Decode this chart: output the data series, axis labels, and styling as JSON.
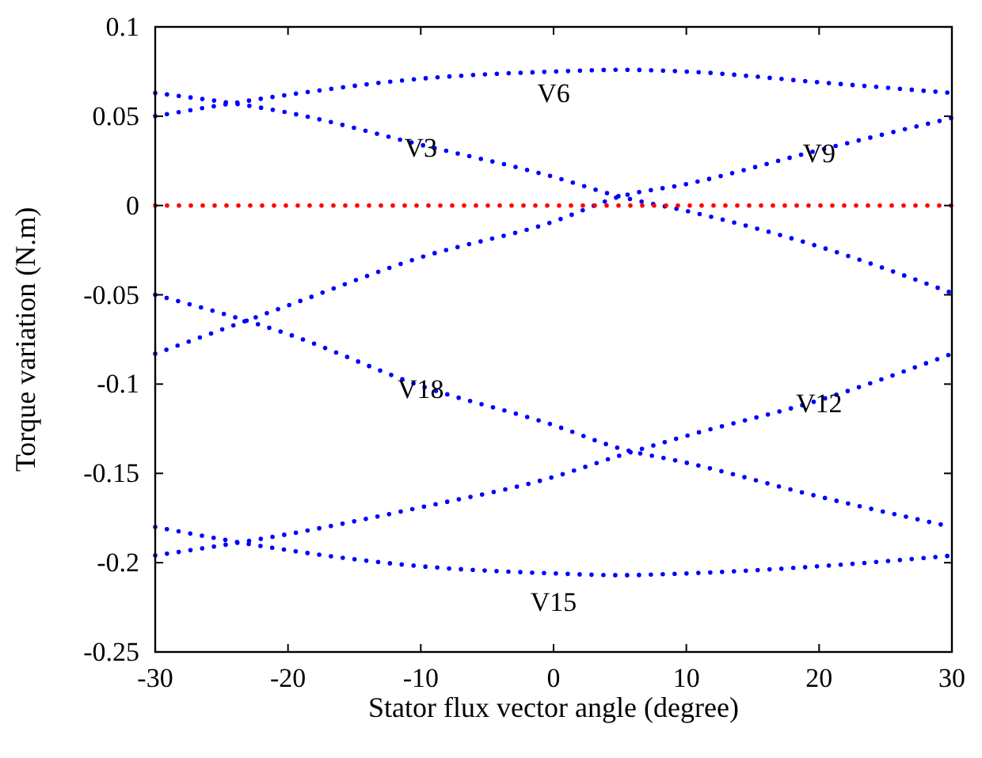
{
  "chart_data": {
    "type": "line",
    "xlabel": "Stator flux vector angle (degree)",
    "ylabel": "Torque variation (N.m)",
    "x": [
      -30,
      -20,
      -10,
      0,
      5,
      10,
      20,
      30
    ],
    "series": [
      {
        "name": "V6",
        "color": "#0000ff",
        "values": [
          0.05,
          0.062,
          0.071,
          0.075,
          0.076,
          0.075,
          0.069,
          0.063
        ]
      },
      {
        "name": "V3",
        "color": "#0000ff",
        "values": [
          0.063,
          0.052,
          0.034,
          0.016,
          0.005,
          -0.003,
          -0.023,
          -0.049
        ]
      },
      {
        "name": "V9",
        "color": "#0000ff",
        "values": [
          -0.083,
          -0.056,
          -0.029,
          -0.009,
          0.005,
          0.012,
          0.031,
          0.049
        ]
      },
      {
        "name": "V18",
        "color": "#0000ff",
        "values": [
          -0.05,
          -0.072,
          -0.101,
          -0.123,
          -0.136,
          -0.144,
          -0.163,
          -0.18
        ]
      },
      {
        "name": "V12",
        "color": "#0000ff",
        "values": [
          -0.196,
          -0.184,
          -0.169,
          -0.152,
          -0.14,
          -0.129,
          -0.109,
          -0.083
        ]
      },
      {
        "name": "V15",
        "color": "#0000ff",
        "values": [
          -0.18,
          -0.193,
          -0.202,
          -0.206,
          -0.207,
          -0.206,
          -0.202,
          -0.196
        ]
      },
      {
        "color": "#ff0000",
        "values": [
          0,
          0,
          0,
          0,
          0,
          0,
          0,
          0
        ]
      }
    ],
    "xlim": [
      -30,
      30
    ],
    "xticks": [
      -30,
      -20,
      -10,
      0,
      10,
      20,
      30
    ],
    "ylim": [
      -0.25,
      0.1
    ],
    "yticks": [
      -0.25,
      -0.2,
      -0.15,
      -0.1,
      -0.05,
      0,
      0.05,
      0.1
    ],
    "grid": false,
    "marker": "none",
    "line_style": "dotted"
  }
}
